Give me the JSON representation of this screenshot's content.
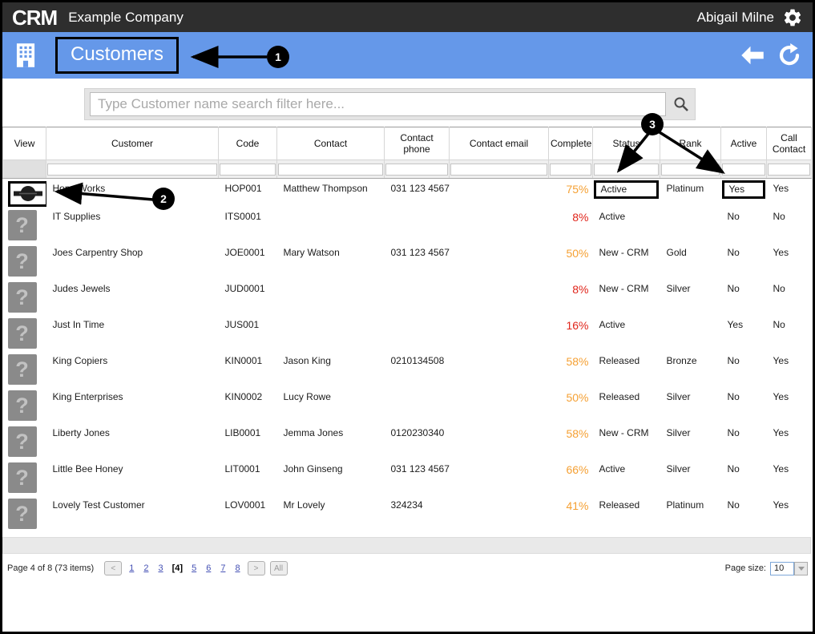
{
  "window": {
    "logo": "CRM",
    "company": "Example Company",
    "user": "Abigail Milne"
  },
  "nav": {
    "title": "Customers"
  },
  "search": {
    "placeholder": "Type Customer name search filter here..."
  },
  "table": {
    "columns": [
      {
        "key": "view",
        "label": "View"
      },
      {
        "key": "customer",
        "label": "Customer"
      },
      {
        "key": "code",
        "label": "Code"
      },
      {
        "key": "contact",
        "label": "Contact"
      },
      {
        "key": "phone",
        "label": "Contact phone"
      },
      {
        "key": "email",
        "label": "Contact email"
      },
      {
        "key": "complete",
        "label": "Complete"
      },
      {
        "key": "status",
        "label": "Status"
      },
      {
        "key": "rank",
        "label": "Rank"
      },
      {
        "key": "active",
        "label": "Active"
      },
      {
        "key": "call",
        "label": "Call Contact"
      }
    ],
    "rows": [
      {
        "customer": "Hope Works",
        "code": "HOP001",
        "contact": "Matthew Thompson",
        "phone": "031 123 4567",
        "email": "",
        "complete": "75%",
        "complete_color": "#f5a033",
        "status": "Active",
        "rank": "Platinum",
        "active": "Yes",
        "call": "Yes",
        "icon": "logo",
        "boxed": true
      },
      {
        "customer": "IT Supplies",
        "code": "ITS0001",
        "contact": "",
        "phone": "",
        "email": "",
        "complete": "8%",
        "complete_color": "#e0251b",
        "status": "Active",
        "rank": "",
        "active": "No",
        "call": "No",
        "icon": "placeholder",
        "boxed": false
      },
      {
        "customer": "Joes Carpentry Shop",
        "code": "JOE0001",
        "contact": "Mary Watson",
        "phone": "031 123 4567",
        "email": "",
        "complete": "50%",
        "complete_color": "#f5a033",
        "status": "New - CRM",
        "rank": "Gold",
        "active": "No",
        "call": "Yes",
        "icon": "placeholder",
        "boxed": false
      },
      {
        "customer": "Judes Jewels",
        "code": "JUD0001",
        "contact": "",
        "phone": "",
        "email": "",
        "complete": "8%",
        "complete_color": "#e0251b",
        "status": "New - CRM",
        "rank": "Silver",
        "active": "No",
        "call": "No",
        "icon": "placeholder",
        "boxed": false
      },
      {
        "customer": "Just In Time",
        "code": "JUS001",
        "contact": "",
        "phone": "",
        "email": "",
        "complete": "16%",
        "complete_color": "#e0251b",
        "status": "Active",
        "rank": "",
        "active": "Yes",
        "call": "No",
        "icon": "placeholder",
        "boxed": false
      },
      {
        "customer": "King Copiers",
        "code": "KIN0001",
        "contact": "Jason King",
        "phone": "0210134508",
        "email": "",
        "complete": "58%",
        "complete_color": "#f5a033",
        "status": "Released",
        "rank": "Bronze",
        "active": "No",
        "call": "Yes",
        "icon": "placeholder",
        "boxed": false
      },
      {
        "customer": "King Enterprises",
        "code": "KIN0002",
        "contact": "Lucy Rowe",
        "phone": "",
        "email": "",
        "complete": "50%",
        "complete_color": "#f5a033",
        "status": "Released",
        "rank": "Silver",
        "active": "No",
        "call": "Yes",
        "icon": "placeholder",
        "boxed": false
      },
      {
        "customer": "Liberty Jones",
        "code": "LIB0001",
        "contact": "Jemma Jones",
        "phone": "0120230340",
        "email": "",
        "complete": "58%",
        "complete_color": "#f5a033",
        "status": "New - CRM",
        "rank": "Silver",
        "active": "No",
        "call": "Yes",
        "icon": "placeholder",
        "boxed": false
      },
      {
        "customer": "Little Bee Honey",
        "code": "LIT0001",
        "contact": "John Ginseng",
        "phone": "031 123 4567",
        "email": "",
        "complete": "66%",
        "complete_color": "#f5a033",
        "status": "Active",
        "rank": "Silver",
        "active": "No",
        "call": "Yes",
        "icon": "placeholder",
        "boxed": false
      },
      {
        "customer": "Lovely Test Customer",
        "code": "LOV0001",
        "contact": "Mr Lovely",
        "phone": "324234",
        "email": "",
        "complete": "41%",
        "complete_color": "#f5a033",
        "status": "Released",
        "rank": "Platinum",
        "active": "No",
        "call": "Yes",
        "icon": "placeholder",
        "boxed": false
      }
    ]
  },
  "pager": {
    "summary": "Page 4 of 8 (73 items)",
    "prev_label": "<",
    "next_label": ">",
    "pages": [
      "1",
      "2",
      "3",
      "4",
      "5",
      "6",
      "7",
      "8"
    ],
    "current": "4",
    "current_display": "[4]",
    "all_label": "All",
    "page_size_label": "Page size:",
    "page_size": "10"
  },
  "annotations": {
    "step1": "1",
    "step2": "2",
    "step3": "3"
  },
  "colors": {
    "topbar": "#2e2e2e",
    "accent_blue": "#6598e9",
    "pct_orange": "#f5a033",
    "pct_red": "#e0251b",
    "link_blue": "#4450b4"
  }
}
